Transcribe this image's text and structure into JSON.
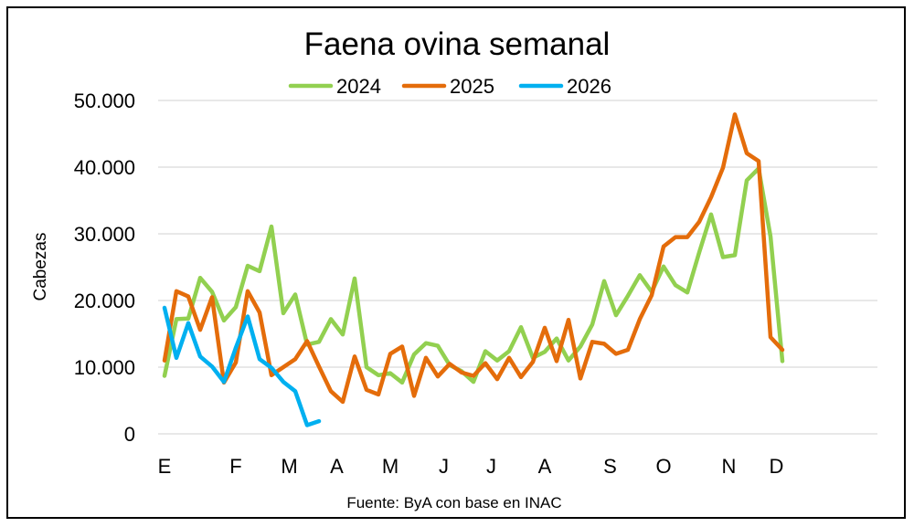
{
  "chart_data": {
    "type": "line",
    "title": "Faena ovina semanal",
    "ylabel": "Cabezas",
    "xlabel": "",
    "source": "Fuente: ByA con base en INAC",
    "ylim": [
      0,
      50000
    ],
    "y_ticks": [
      0,
      10000,
      20000,
      30000,
      40000,
      50000
    ],
    "y_tick_labels": [
      "0",
      "10.000",
      "20.000",
      "30.000",
      "40.000",
      "50.000"
    ],
    "x_tick_labels": [
      {
        "label": "E",
        "week": 1
      },
      {
        "label": "F",
        "week": 7
      },
      {
        "label": "M",
        "week": 11.5
      },
      {
        "label": "A",
        "week": 15.5
      },
      {
        "label": "M",
        "week": 20
      },
      {
        "label": "J",
        "week": 24.5
      },
      {
        "label": "J",
        "week": 28.5
      },
      {
        "label": "A",
        "week": 33
      },
      {
        "label": "S",
        "week": 38.5
      },
      {
        "label": "O",
        "week": 43
      },
      {
        "label": "N",
        "week": 48.5
      },
      {
        "label": "D",
        "week": 52.5
      }
    ],
    "x_range": [
      1,
      57
    ],
    "grid": true,
    "legend_position": "top",
    "series": [
      {
        "name": "2024",
        "color": "#92d050",
        "values": [
          8700,
          17200,
          17300,
          23400,
          21300,
          17000,
          19000,
          25200,
          24400,
          31100,
          18100,
          20900,
          13400,
          13800,
          17200,
          14900,
          23300,
          10000,
          8800,
          9100,
          7700,
          11900,
          13600,
          13200,
          10300,
          9400,
          7800,
          12400,
          11000,
          12400,
          16000,
          11400,
          12300,
          14300,
          11000,
          13100,
          16400,
          22900,
          17800,
          20700,
          23800,
          21300,
          25100,
          22300,
          21200,
          27200,
          32900,
          26500,
          26800,
          38000,
          39800,
          29600,
          10900
        ]
      },
      {
        "name": "2025",
        "color": "#e46c0a",
        "values": [
          11000,
          21400,
          20600,
          15600,
          20500,
          7700,
          10700,
          21400,
          18200,
          8800,
          10000,
          11200,
          13900,
          10100,
          6400,
          4800,
          11600,
          6600,
          5900,
          12000,
          13100,
          5700,
          11400,
          8600,
          10500,
          9200,
          8700,
          10600,
          8200,
          11400,
          8500,
          10800,
          15900,
          10900,
          17100,
          8300,
          13800,
          13500,
          12000,
          12600,
          17200,
          20800,
          28100,
          29500,
          29500,
          31800,
          35500,
          39900,
          47900,
          42100,
          40900,
          14500,
          12600
        ]
      },
      {
        "name": "2026",
        "color": "#00b0f0",
        "values": [
          18900,
          11400,
          16600,
          11600,
          10100,
          7800,
          12900,
          17600,
          11200,
          9900,
          7800,
          6400,
          1300,
          1900
        ]
      }
    ]
  }
}
